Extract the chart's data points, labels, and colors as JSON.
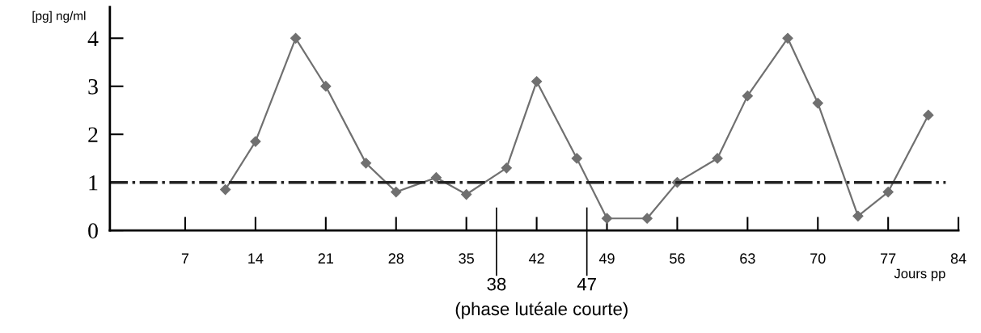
{
  "chart_data": {
    "type": "line",
    "ylabel": "[pg] ng/ml",
    "xlabel": "Jours pp",
    "x": [
      11,
      14,
      18,
      21,
      25,
      28,
      32,
      35,
      39,
      42,
      46,
      49,
      53,
      56,
      60,
      63,
      67,
      70,
      74,
      77,
      81
    ],
    "series": [
      {
        "color": "#707070",
        "values": [
          0.85,
          1.85,
          4.0,
          3.0,
          1.4,
          0.8,
          1.1,
          0.75,
          1.3,
          3.1,
          1.5,
          0.25,
          0.25,
          1.0,
          1.5,
          2.8,
          4.0,
          2.65,
          0.3,
          0.8,
          2.4
        ]
      }
    ],
    "marker": "diamond",
    "line_style": "solid",
    "grid": false,
    "legend": false,
    "xlim": [
      -0.5,
      84
    ],
    "xticks": [
      7,
      14,
      21,
      28,
      35,
      42,
      49,
      56,
      63,
      70,
      77,
      84
    ],
    "ylim": [
      0,
      4.65
    ],
    "yticks": [
      0,
      1,
      2,
      3,
      4
    ],
    "ref_lines": [
      {
        "axis": "y",
        "value": 1,
        "color": "#222222",
        "line_style": "dashdot"
      },
      {
        "axis": "x",
        "value": 38,
        "label": "38",
        "color": "#000000",
        "line_style": "solid"
      },
      {
        "axis": "x",
        "value": 47,
        "label": "47",
        "color": "#000000",
        "line_style": "solid"
      }
    ],
    "annotations": [
      "(phase lutéale courte)"
    ]
  }
}
